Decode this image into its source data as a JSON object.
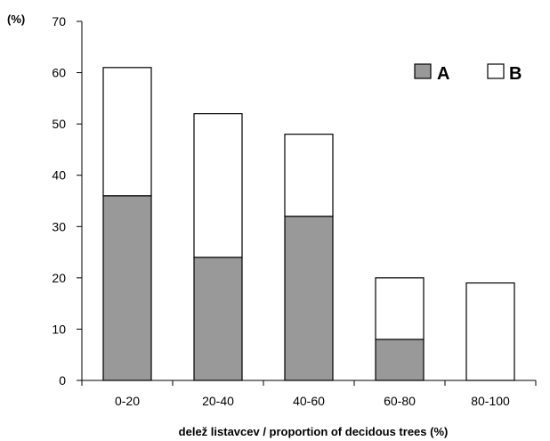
{
  "chart_data": {
    "type": "bar",
    "stacked": true,
    "categories": [
      "0-20",
      "20-40",
      "40-60",
      "60-80",
      "80-100"
    ],
    "series": [
      {
        "name": "A",
        "values": [
          36,
          24,
          32,
          8,
          0
        ],
        "color": "#999999"
      },
      {
        "name": "B",
        "values": [
          25,
          28,
          16,
          12,
          19
        ],
        "color": "#ffffff"
      }
    ],
    "ylabel": "(%)",
    "xlabel": "delež listavcev / proportion of decidous trees (%)",
    "ylim": [
      0,
      70
    ],
    "yticks": [
      0,
      10,
      20,
      30,
      40,
      50,
      60,
      70
    ],
    "grid": false,
    "legend": "top-right"
  }
}
